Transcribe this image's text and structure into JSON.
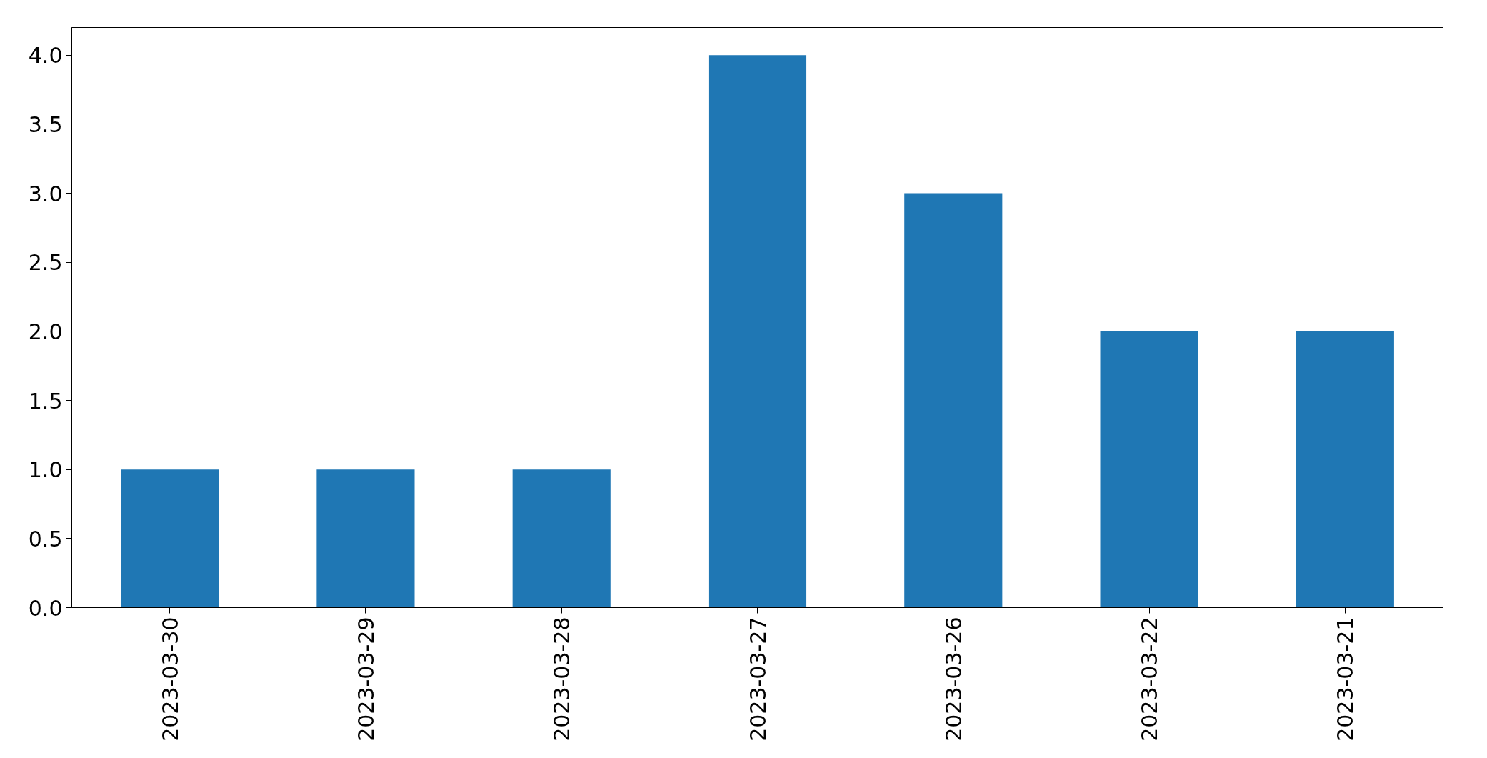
{
  "chart_data": {
    "type": "bar",
    "categories": [
      "2023-03-30",
      "2023-03-29",
      "2023-03-28",
      "2023-03-27",
      "2023-03-26",
      "2023-03-22",
      "2023-03-21"
    ],
    "values": [
      1,
      1,
      1,
      4,
      3,
      2,
      2
    ],
    "color": "#1f77b4",
    "ylim": [
      0,
      4.2
    ],
    "yticks": [
      {
        "value": 0,
        "label": "0.0"
      },
      {
        "value": 0.5,
        "label": "0.5"
      },
      {
        "value": 1,
        "label": "1.0"
      },
      {
        "value": 1.5,
        "label": "1.5"
      },
      {
        "value": 2,
        "label": "2.0"
      },
      {
        "value": 2.5,
        "label": "2.5"
      },
      {
        "value": 3,
        "label": "3.0"
      },
      {
        "value": 3.5,
        "label": "3.5"
      },
      {
        "value": 4,
        "label": "4.0"
      }
    ],
    "grid": false
  }
}
